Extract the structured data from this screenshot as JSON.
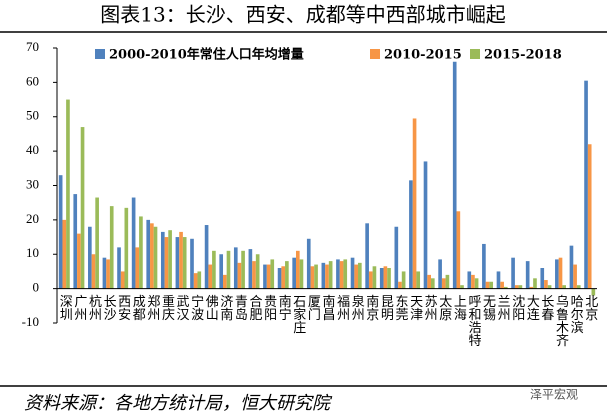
{
  "chart_data": {
    "type": "bar",
    "title": "图表13：长沙、西安、成都等中西部城市崛起",
    "source": "资料来源：各地方统计局，恒大研究院",
    "watermark": "泽平宏观",
    "categories": [
      "深圳",
      "广州",
      "杭州",
      "长沙",
      "西安",
      "成都",
      "郑州",
      "重庆",
      "武汉",
      "宁波",
      "佛山",
      "济南",
      "青岛",
      "合肥",
      "贵阳",
      "南宁",
      "石家庄",
      "厦门",
      "南昌",
      "福州",
      "泉州",
      "南京",
      "昆明",
      "东莞",
      "天津",
      "苏州",
      "太原",
      "上海",
      "呼和浩特",
      "无锡",
      "兰州",
      "沈阳",
      "大连",
      "长春",
      "乌鲁木齐",
      "哈尔滨",
      "北京"
    ],
    "series": [
      {
        "name": "2000-2010年常住人口年均增量",
        "color": "#4f81bd",
        "values": [
          33,
          27.5,
          18,
          9,
          12,
          26.5,
          20,
          16.5,
          15,
          14.5,
          18.5,
          10,
          12,
          11.5,
          7,
          6,
          9,
          14.5,
          7.5,
          8.5,
          9,
          19,
          6,
          18,
          31.5,
          37,
          8.5,
          66,
          5,
          13,
          5,
          9,
          8,
          6,
          8.5,
          12.5,
          60.5
        ]
      },
      {
        "name": "2010-2015",
        "color": "#f79646",
        "values": [
          20,
          16,
          10,
          8.5,
          5,
          12,
          19,
          15,
          16.5,
          4.5,
          7,
          4,
          7.5,
          8,
          7,
          6.5,
          11,
          6.5,
          7,
          8,
          7,
          5,
          6.5,
          2,
          49.5,
          4,
          3,
          22.5,
          4,
          2,
          2,
          1,
          0.5,
          2.5,
          9,
          7,
          42
        ]
      },
      {
        "name": "2015-2018",
        "color": "#9bbb59",
        "values": [
          55,
          47,
          26.5,
          24,
          23.5,
          21,
          18,
          17,
          15,
          5,
          11,
          11,
          11,
          10,
          8.5,
          8,
          8.5,
          7,
          8,
          8.5,
          7.5,
          6.5,
          6,
          5,
          5,
          3,
          4,
          1,
          3,
          2,
          0.5,
          1,
          3,
          1,
          1,
          1,
          -2
        ]
      }
    ],
    "ylim": [
      -10,
      70
    ],
    "yticks": [
      -10,
      0,
      10,
      20,
      30,
      40,
      50,
      60,
      70
    ]
  }
}
